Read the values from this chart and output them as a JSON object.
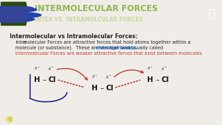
{
  "header_bg": "#3a5a1c",
  "header_text1": "INTERMOLECULAR FORCES",
  "header_text2": "INTER VS. INTRAMOLCULAR FORCES",
  "body_bg": "#f0ede8",
  "title_text": "Intermolecular vs Intramolecular Forces:",
  "line1_prefix": "Intra",
  "line1_mid": "molecular Forces are attractive forces that hold atoms together within a",
  "line2": "molecule (or substance).  These are stronger and usually called ",
  "line2_highlight": "chemical bonds",
  "line3_red": "Intermolecular Forces are weaker attractive forces that exist between molecules",
  "dark_green": "#3a5a1c",
  "light_green": "#8db84a",
  "red_color": "#c0392b",
  "navy_color": "#1a237e",
  "text_color": "#222222"
}
